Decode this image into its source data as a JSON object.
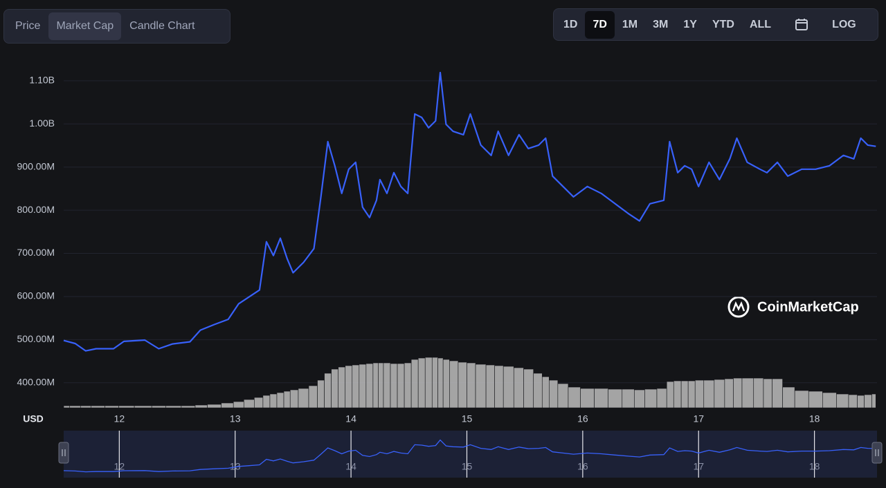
{
  "tabs": [
    "Price",
    "Market Cap",
    "Candle Chart"
  ],
  "active_tab": "Market Cap",
  "ranges": [
    "1D",
    "7D",
    "1M",
    "3M",
    "1Y",
    "YTD",
    "ALL"
  ],
  "active_range": "7D",
  "log_button": "LOG",
  "watermark": "CoinMarketCap",
  "chart_data": {
    "type": "line",
    "y_axis_label": "USD",
    "x": [
      11.52,
      11.62,
      11.71,
      11.8,
      11.95,
      12.04,
      12.22,
      12.34,
      12.46,
      12.61,
      12.7,
      12.82,
      12.94,
      13.03,
      13.12,
      13.21,
      13.27,
      13.33,
      13.39,
      13.45,
      13.5,
      13.59,
      13.68,
      13.74,
      13.8,
      13.86,
      13.92,
      13.98,
      14.04,
      14.1,
      14.16,
      14.22,
      14.25,
      14.31,
      14.37,
      14.43,
      14.49,
      14.55,
      14.61,
      14.67,
      14.73,
      14.77,
      14.82,
      14.88,
      14.97,
      15.03,
      15.12,
      15.21,
      15.27,
      15.36,
      15.45,
      15.53,
      15.62,
      15.68,
      15.74,
      15.83,
      15.92,
      16.04,
      16.16,
      16.28,
      16.4,
      16.49,
      16.58,
      16.7,
      16.75,
      16.82,
      16.88,
      16.94,
      17.0,
      17.09,
      17.18,
      17.27,
      17.33,
      17.42,
      17.53,
      17.59,
      17.68,
      17.77,
      17.89,
      18.01,
      18.13,
      18.25,
      18.34,
      18.4,
      18.46,
      18.53
    ],
    "series": [
      {
        "color": "#3861fb",
        "values": [
          498000000,
          491000000,
          474000000,
          479000000,
          479000000,
          496000000,
          499000000,
          479000000,
          490000000,
          495000000,
          522000000,
          535000000,
          547000000,
          583000000,
          599000000,
          615000000,
          727000000,
          695000000,
          735000000,
          687000000,
          655000000,
          679000000,
          711000000,
          831000000,
          959000000,
          903000000,
          839000000,
          895000000,
          911000000,
          807000000,
          783000000,
          823000000,
          871000000,
          839000000,
          887000000,
          855000000,
          839000000,
          1023000000,
          1015000000,
          991000000,
          1007000000,
          1119000000,
          999000000,
          983000000,
          975000000,
          1023000000,
          951000000,
          927000000,
          983000000,
          927000000,
          975000000,
          943000000,
          951000000,
          967000000,
          879000000,
          855000000,
          831000000,
          855000000,
          839000000,
          815000000,
          791000000,
          775000000,
          815000000,
          823000000,
          959000000,
          887000000,
          903000000,
          895000000,
          855000000,
          911000000,
          871000000,
          919000000,
          967000000,
          911000000,
          895000000,
          887000000,
          911000000,
          879000000,
          895000000,
          895000000,
          903000000,
          927000000,
          919000000,
          967000000,
          951000000,
          948000000
        ]
      }
    ],
    "volume": [
      3,
      3,
      3,
      3,
      3,
      3,
      3,
      3,
      3,
      3,
      4,
      5,
      7,
      9,
      12,
      15,
      18,
      20,
      22,
      24,
      26,
      28,
      32,
      40,
      50,
      56,
      59,
      61,
      62,
      63,
      64,
      65,
      65,
      65,
      64,
      64,
      65,
      70,
      72,
      73,
      73,
      72,
      70,
      68,
      66,
      65,
      63,
      62,
      61,
      60,
      58,
      56,
      50,
      45,
      40,
      35,
      30,
      28,
      28,
      27,
      27,
      26,
      27,
      28,
      38,
      39,
      39,
      39,
      40,
      40,
      41,
      42,
      43,
      43,
      43,
      42,
      42,
      30,
      25,
      24,
      22,
      20,
      19,
      18,
      19,
      20
    ],
    "volume_color": "#c8c8c8",
    "y2lim": [
      0,
      490
    ],
    "xlim": [
      11.52,
      18.54
    ],
    "xticks": [
      12,
      13,
      14,
      15,
      16,
      17,
      18
    ],
    "ylim": [
      342000000,
      1127000000
    ],
    "yticks": [
      {
        "value": 400000000,
        "label": "400.00M"
      },
      {
        "value": 500000000,
        "label": "500.00M"
      },
      {
        "value": 600000000,
        "label": "600.00M"
      },
      {
        "value": 700000000,
        "label": "700.00M"
      },
      {
        "value": 800000000,
        "label": "800.00M"
      },
      {
        "value": 900000000,
        "label": "900.00M"
      },
      {
        "value": 1000000000,
        "label": "1.00B"
      },
      {
        "value": 1100000000,
        "label": "1.10B"
      }
    ],
    "grid": true
  }
}
